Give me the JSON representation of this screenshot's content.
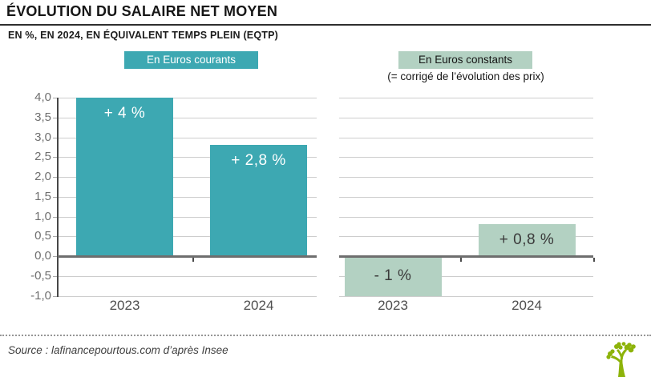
{
  "header": {
    "title": "ÉVOLUTION DU SALAIRE NET MOYEN",
    "subtitle": "EN %, EN 2024, EN ÉQUIVALENT TEMPS PLEIN (EQTP)"
  },
  "legends": [
    {
      "label": "En Euros courants",
      "color": "#3da8b2",
      "text_color": "#ffffff"
    },
    {
      "label": "En Euros constants",
      "note": "(= corrigé de l’évolution des prix)",
      "color": "#b3d1c2",
      "text_color": "#161616"
    }
  ],
  "chart_data": {
    "type": "bar",
    "categories": [
      "2023",
      "2024"
    ],
    "series": [
      {
        "name": "En Euros courants",
        "values": [
          4.0,
          2.8
        ],
        "labels": [
          "+ 4 %",
          "+ 2,8 %"
        ],
        "color": "#3da8b2",
        "label_color": "#ffffff"
      },
      {
        "name": "En Euros constants",
        "values": [
          -1.0,
          0.8
        ],
        "labels": [
          "- 1 %",
          "+ 0,8 %"
        ],
        "color": "#b3d1c2",
        "label_color": "#3b3b3b"
      }
    ],
    "title": "Évolution du salaire net moyen",
    "xlabel": "",
    "ylabel": "",
    "ylim": [
      -1.0,
      4.0
    ],
    "ytick_step": 0.5,
    "ytick_labels": [
      "4,0",
      "3,5",
      "3,0",
      "2,5",
      "2,0",
      "1,5",
      "1,0",
      "0,5",
      "0,0",
      "-0,5",
      "-1,0"
    ],
    "grid": true,
    "legend_position": "top",
    "layout": "two side-by-side panels sharing one y-axis, one series per panel"
  },
  "footer": {
    "source": "Source : lafinancepourtous.com d’après Insee"
  },
  "icons": {
    "tree_logo_color": "#8db30a"
  }
}
